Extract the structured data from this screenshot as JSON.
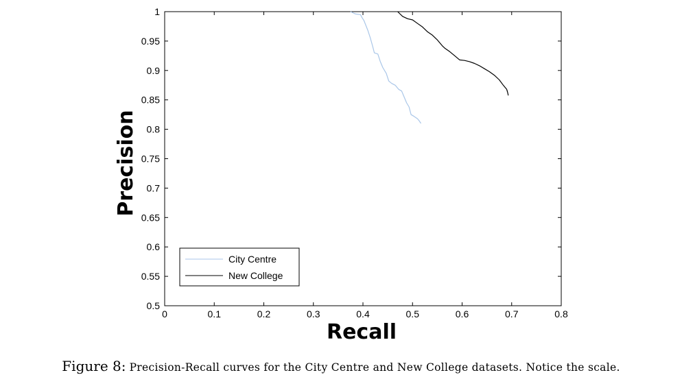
{
  "chart_data": {
    "type": "line",
    "xlabel": "Recall",
    "ylabel": "Precision",
    "xlim": [
      0,
      0.8
    ],
    "ylim": [
      0.5,
      1
    ],
    "x_ticks": [
      "0",
      "0.1",
      "0.2",
      "0.3",
      "0.4",
      "0.5",
      "0.6",
      "0.7",
      "0.8"
    ],
    "y_ticks": [
      "0.5",
      "0.55",
      "0.6",
      "0.65",
      "0.7",
      "0.75",
      "0.8",
      "0.85",
      "0.9",
      "0.95",
      "1"
    ],
    "legend_position": "bottom-left",
    "series": [
      {
        "name": "City Centre",
        "color": "#a9c6e8",
        "points": [
          [
            0.375,
            1.0
          ],
          [
            0.385,
            0.996
          ],
          [
            0.395,
            0.995
          ],
          [
            0.398,
            0.99
          ],
          [
            0.402,
            0.985
          ],
          [
            0.41,
            0.968
          ],
          [
            0.415,
            0.955
          ],
          [
            0.42,
            0.94
          ],
          [
            0.423,
            0.93
          ],
          [
            0.43,
            0.928
          ],
          [
            0.435,
            0.915
          ],
          [
            0.44,
            0.905
          ],
          [
            0.447,
            0.895
          ],
          [
            0.452,
            0.882
          ],
          [
            0.458,
            0.878
          ],
          [
            0.465,
            0.875
          ],
          [
            0.472,
            0.868
          ],
          [
            0.478,
            0.865
          ],
          [
            0.483,
            0.855
          ],
          [
            0.488,
            0.845
          ],
          [
            0.493,
            0.838
          ],
          [
            0.497,
            0.825
          ],
          [
            0.503,
            0.822
          ],
          [
            0.51,
            0.818
          ],
          [
            0.513,
            0.815
          ],
          [
            0.517,
            0.81
          ]
        ]
      },
      {
        "name": "New College",
        "color": "#000000",
        "points": [
          [
            0.47,
            1.0
          ],
          [
            0.48,
            0.992
          ],
          [
            0.49,
            0.988
          ],
          [
            0.5,
            0.986
          ],
          [
            0.51,
            0.98
          ],
          [
            0.52,
            0.974
          ],
          [
            0.53,
            0.966
          ],
          [
            0.54,
            0.96
          ],
          [
            0.55,
            0.952
          ],
          [
            0.56,
            0.942
          ],
          [
            0.565,
            0.938
          ],
          [
            0.575,
            0.932
          ],
          [
            0.585,
            0.925
          ],
          [
            0.595,
            0.918
          ],
          [
            0.605,
            0.917
          ],
          [
            0.615,
            0.915
          ],
          [
            0.625,
            0.912
          ],
          [
            0.635,
            0.908
          ],
          [
            0.645,
            0.903
          ],
          [
            0.655,
            0.898
          ],
          [
            0.665,
            0.892
          ],
          [
            0.675,
            0.884
          ],
          [
            0.683,
            0.875
          ],
          [
            0.69,
            0.868
          ],
          [
            0.692,
            0.862
          ],
          [
            0.693,
            0.858
          ],
          [
            0.691,
            0.866
          ]
        ]
      }
    ]
  },
  "caption": {
    "label": "Figure 8:",
    "text": "Precision-Recall curves for the City Centre and New College datasets. Notice the scale."
  }
}
